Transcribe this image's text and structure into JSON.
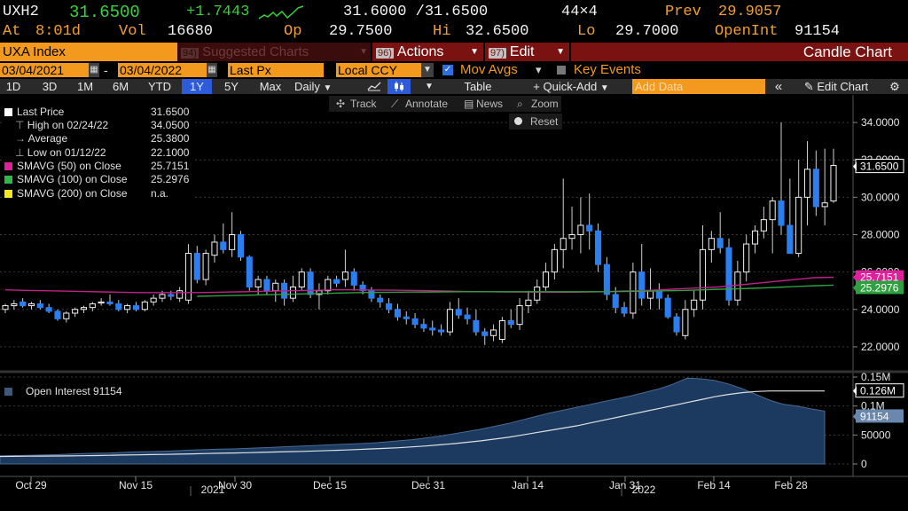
{
  "quote": {
    "ticker": "UXH2",
    "last": "31.6500",
    "change": "+1.7443",
    "bid_ask": "31.6000 /31.6500",
    "size": "44×4",
    "prev_label": "Prev",
    "prev": "29.9057",
    "at_label": "At",
    "time": "8:01d",
    "vol_label": "Vol",
    "vol": "16680",
    "open_label": "Op",
    "open": "29.7500",
    "hi_label": "Hi",
    "hi": "32.6500",
    "lo_label": "Lo",
    "lo": "29.7000",
    "oi_label": "OpenInt",
    "oi": "91154"
  },
  "toolbar_top": {
    "security": "UXA Index",
    "suggested_num": "94)",
    "suggested": "Suggested Charts",
    "actions_num": "96)",
    "actions": "Actions",
    "edit_num": "97)",
    "edit": "Edit",
    "chart_type": "Candle Chart"
  },
  "range_row": {
    "start": "03/04/2021",
    "dash": "-",
    "end": "03/04/2022",
    "field": "Last Px",
    "currency": "Local CCY",
    "mov_avgs": "Mov Avgs",
    "key_events": "Key Events"
  },
  "periods": [
    "1D",
    "3D",
    "1M",
    "6M",
    "YTD",
    "1Y",
    "5Y",
    "Max"
  ],
  "selected_period": "1Y",
  "toolbar": {
    "freq": "Daily",
    "table": "Table",
    "quick_add": "Quick-Add",
    "add_data_placeholder": "Add Data",
    "edit_chart": "Edit Chart"
  },
  "chart_tools": {
    "track": "Track",
    "annotate": "Annotate",
    "news": "News",
    "zoom": "Zoom",
    "reset": "Reset"
  },
  "legend": [
    {
      "label": "Last Price",
      "value": "31.6500",
      "color": "#ffffff"
    },
    {
      "label": "High on 02/24/22",
      "value": "34.0500",
      "color": "#aaaaaa"
    },
    {
      "label": "Average",
      "value": "25.3800",
      "color": "#aaaaaa"
    },
    {
      "label": "Low on 01/12/22",
      "value": "22.1000",
      "color": "#aaaaaa"
    },
    {
      "label": "SMAVG (50)  on Close",
      "value": "25.7151",
      "color": "#e0209a"
    },
    {
      "label": "SMAVG (100)  on Close",
      "value": "25.2976",
      "color": "#2fb84a"
    },
    {
      "label": "SMAVG (200)  on Close",
      "value": "n.a.",
      "color": "#f5e61e"
    }
  ],
  "lower_legend": "Open Interest 91154",
  "colors": {
    "up": "#ffffff",
    "down": "#2a7ef0",
    "sma50": "#c0208a",
    "sma100": "#2fa040",
    "oi_area": "#1c3a60",
    "oi_sma": "#e0e0e0"
  },
  "chart_data": [
    {
      "type": "candlestick",
      "title": "UXA Index",
      "y_ticks": [
        "22.0000",
        "24.0000",
        "26.0000",
        "28.0000",
        "30.0000",
        "32.0000",
        "34.0000"
      ],
      "ylim": [
        21,
        35
      ],
      "x_ticks": [
        "Oct 29",
        "Nov 15",
        "Nov 30",
        "Dec 15",
        "Dec 31",
        "Jan 14",
        "Jan 31",
        "Feb 14",
        "Feb 28"
      ],
      "x_years": [
        "2021",
        "2022"
      ],
      "candles": [
        [
          24.0,
          24.3,
          23.8,
          24.2
        ],
        [
          24.2,
          24.5,
          24.0,
          24.3
        ],
        [
          24.4,
          24.6,
          24.1,
          24.2
        ],
        [
          24.2,
          24.4,
          24.0,
          24.3
        ],
        [
          24.3,
          24.5,
          24.0,
          24.1
        ],
        [
          24.1,
          24.3,
          23.8,
          23.9
        ],
        [
          23.9,
          24.0,
          23.4,
          23.5
        ],
        [
          23.5,
          23.9,
          23.3,
          23.8
        ],
        [
          23.8,
          24.1,
          23.6,
          24.0
        ],
        [
          24.0,
          24.2,
          23.8,
          24.1
        ],
        [
          24.1,
          24.4,
          23.9,
          24.3
        ],
        [
          24.4,
          24.6,
          24.2,
          24.4
        ],
        [
          24.4,
          24.8,
          24.2,
          24.3
        ],
        [
          24.3,
          24.5,
          23.9,
          24.0
        ],
        [
          24.0,
          24.3,
          23.8,
          24.2
        ],
        [
          24.2,
          24.4,
          23.9,
          24.0
        ],
        [
          24.0,
          24.5,
          23.9,
          24.4
        ],
        [
          24.4,
          24.8,
          24.2,
          24.6
        ],
        [
          24.6,
          25.0,
          24.4,
          24.8
        ],
        [
          24.8,
          25.0,
          24.5,
          24.7
        ],
        [
          24.6,
          25.2,
          24.4,
          25.0
        ],
        [
          24.5,
          27.5,
          24.3,
          27.0
        ],
        [
          27.0,
          27.4,
          25.4,
          25.6
        ],
        [
          25.6,
          27.2,
          25.3,
          27.0
        ],
        [
          26.9,
          28.0,
          26.5,
          27.6
        ],
        [
          27.6,
          28.6,
          27.0,
          27.2
        ],
        [
          27.2,
          29.2,
          26.8,
          28.0
        ],
        [
          28.0,
          28.2,
          26.6,
          26.8
        ],
        [
          26.8,
          26.9,
          25.0,
          25.2
        ],
        [
          25.2,
          25.8,
          24.8,
          25.6
        ],
        [
          25.6,
          25.8,
          24.8,
          25.0
        ],
        [
          25.0,
          25.6,
          24.4,
          25.4
        ],
        [
          25.4,
          25.6,
          24.2,
          24.6
        ],
        [
          24.6,
          25.8,
          24.4,
          25.2
        ],
        [
          25.2,
          26.2,
          25.0,
          26.0
        ],
        [
          26.0,
          26.2,
          24.6,
          24.8
        ],
        [
          24.8,
          25.4,
          24.0,
          25.0
        ],
        [
          25.0,
          25.8,
          24.8,
          25.6
        ],
        [
          25.6,
          25.8,
          25.2,
          25.4
        ],
        [
          25.6,
          27.2,
          25.2,
          26.0
        ],
        [
          26.0,
          26.2,
          25.0,
          25.3
        ],
        [
          25.3,
          25.5,
          24.8,
          25.0
        ],
        [
          25.0,
          25.2,
          24.4,
          24.6
        ],
        [
          24.6,
          24.8,
          24.1,
          24.4
        ],
        [
          24.3,
          24.6,
          23.8,
          24.0
        ],
        [
          24.0,
          24.3,
          23.4,
          23.6
        ],
        [
          23.6,
          23.9,
          23.2,
          23.5
        ],
        [
          23.5,
          23.8,
          23.0,
          23.2
        ],
        [
          23.2,
          23.5,
          22.8,
          23.0
        ],
        [
          23.0,
          23.4,
          22.6,
          22.9
        ],
        [
          22.9,
          23.2,
          22.6,
          22.8
        ],
        [
          22.8,
          24.4,
          22.6,
          24.0
        ],
        [
          24.0,
          24.6,
          23.5,
          23.7
        ],
        [
          23.7,
          24.1,
          23.2,
          23.5
        ],
        [
          23.4,
          24.0,
          22.6,
          22.8
        ],
        [
          22.8,
          23.0,
          22.1,
          22.6
        ],
        [
          22.6,
          23.2,
          22.3,
          22.9
        ],
        [
          22.4,
          23.6,
          22.2,
          23.4
        ],
        [
          23.4,
          24.0,
          23.0,
          23.2
        ],
        [
          23.2,
          24.6,
          22.9,
          24.2
        ],
        [
          24.2,
          25.0,
          23.8,
          24.5
        ],
        [
          24.5,
          25.6,
          24.3,
          25.2
        ],
        [
          25.2,
          26.5,
          25.0,
          26.0
        ],
        [
          26.0,
          27.5,
          25.6,
          27.2
        ],
        [
          27.2,
          31.0,
          26.2,
          27.8
        ],
        [
          27.8,
          29.5,
          27.2,
          28.0
        ],
        [
          28.0,
          30.0,
          27.0,
          28.5
        ],
        [
          28.5,
          30.2,
          27.2,
          28.2
        ],
        [
          28.2,
          28.6,
          26.0,
          26.4
        ],
        [
          26.4,
          26.8,
          24.5,
          24.8
        ],
        [
          24.8,
          25.2,
          23.8,
          24.1
        ],
        [
          24.1,
          24.4,
          23.6,
          23.8
        ],
        [
          23.8,
          26.5,
          23.5,
          26.0
        ],
        [
          26.0,
          27.5,
          24.2,
          24.6
        ],
        [
          24.6,
          26.2,
          24.0,
          25.0
        ],
        [
          25.0,
          25.4,
          24.0,
          24.6
        ],
        [
          24.6,
          24.8,
          23.5,
          23.6
        ],
        [
          23.6,
          23.8,
          22.6,
          22.8
        ],
        [
          22.6,
          24.5,
          22.4,
          24.0
        ],
        [
          24.0,
          25.0,
          23.6,
          24.5
        ],
        [
          24.5,
          28.5,
          24.0,
          27.2
        ],
        [
          27.2,
          28.2,
          26.5,
          27.8
        ],
        [
          27.8,
          29.2,
          27.0,
          27.3
        ],
        [
          27.3,
          27.8,
          24.2,
          24.5
        ],
        [
          24.5,
          26.6,
          24.2,
          26.0
        ],
        [
          26.0,
          28.0,
          25.5,
          27.5
        ],
        [
          27.5,
          28.5,
          27.0,
          28.2
        ],
        [
          28.2,
          29.5,
          27.8,
          28.8
        ],
        [
          28.8,
          30.0,
          27.0,
          29.8
        ],
        [
          29.8,
          34.0,
          28.0,
          28.5
        ],
        [
          28.5,
          31.0,
          27.0,
          27.0
        ],
        [
          27.0,
          32.0,
          26.8,
          30.0
        ],
        [
          30.0,
          33.0,
          28.5,
          31.5
        ],
        [
          31.5,
          32.5,
          29.0,
          29.5
        ],
        [
          29.5,
          32.6,
          28.5,
          29.7
        ],
        [
          29.8,
          32.6,
          29.7,
          31.7
        ]
      ],
      "sma50": [
        25.05,
        25.02,
        25.0,
        24.98,
        24.96,
        24.94,
        24.92,
        24.9,
        24.9,
        24.9,
        24.9,
        24.92,
        24.94,
        24.96,
        24.98,
        25.0,
        25.02,
        25.05,
        25.05,
        25.04,
        25.03,
        25.02,
        25.0,
        24.98,
        24.96,
        24.95,
        24.94,
        24.93,
        24.92,
        24.92,
        24.93,
        24.95,
        24.98,
        25.0,
        25.05,
        25.1,
        25.15,
        25.2,
        25.3,
        25.4,
        25.5,
        25.6,
        25.7,
        25.72
      ],
      "sma100": [
        24.7,
        24.72,
        24.74,
        24.76,
        24.78,
        24.8,
        24.82,
        24.84,
        24.86,
        24.88,
        24.9,
        24.91,
        24.92,
        24.93,
        24.93,
        24.94,
        24.95,
        24.95,
        24.95,
        24.95,
        24.95,
        24.95,
        24.95,
        24.95,
        24.95,
        24.95,
        24.96,
        24.97,
        24.98,
        25.0,
        25.02,
        25.05,
        25.08,
        25.1,
        25.13,
        25.16,
        25.2,
        25.24,
        25.27,
        25.3
      ]
    },
    {
      "type": "area",
      "title": "Open Interest",
      "y_ticks": [
        "0",
        "50000",
        "0.1M",
        "0.15M"
      ],
      "ylim": [
        0,
        150000
      ],
      "series": [
        {
          "name": "Open Interest",
          "values": [
            14000,
            14500,
            15000,
            15500,
            16000,
            17000,
            18000,
            18500,
            19000,
            20000,
            21000,
            21500,
            22000,
            23000,
            24000,
            25000,
            25500,
            26000,
            27000,
            28000,
            29000,
            30000,
            31000,
            32000,
            33000,
            34000,
            35000,
            36000,
            38000,
            40000,
            42000,
            45000,
            48000,
            52000,
            56000,
            60000,
            65000,
            70000,
            76000,
            82000,
            88000,
            93000,
            98000,
            103000,
            108000,
            113000,
            118000,
            124000,
            130000,
            138000,
            148000,
            147000,
            144000,
            138000,
            130000,
            120000,
            110000,
            103000,
            100000,
            95000,
            91154
          ]
        },
        {
          "values": [
            13000,
            13200,
            13400,
            13600,
            13800,
            14000,
            14300,
            14600,
            15000,
            15400,
            15800,
            16200,
            16600,
            17000,
            17500,
            18000,
            18500,
            19000,
            19500,
            20000,
            20600,
            21200,
            21800,
            22500,
            23200,
            24000,
            25000,
            26000,
            27000,
            28000,
            29500,
            31000,
            33000,
            35000,
            37500,
            40000,
            43000,
            46000,
            50000,
            54000,
            58000,
            62000,
            66000,
            71000,
            76000,
            81000,
            86000,
            91000,
            96000,
            101000,
            106000,
            111000,
            116000,
            120000,
            123000,
            125000,
            126000,
            126000,
            126000,
            126000,
            126000
          ]
        }
      ],
      "tags": [
        "0.126M",
        "91154"
      ]
    }
  ],
  "price_tags": [
    "31.6500",
    "25.7151",
    "25.2976"
  ]
}
